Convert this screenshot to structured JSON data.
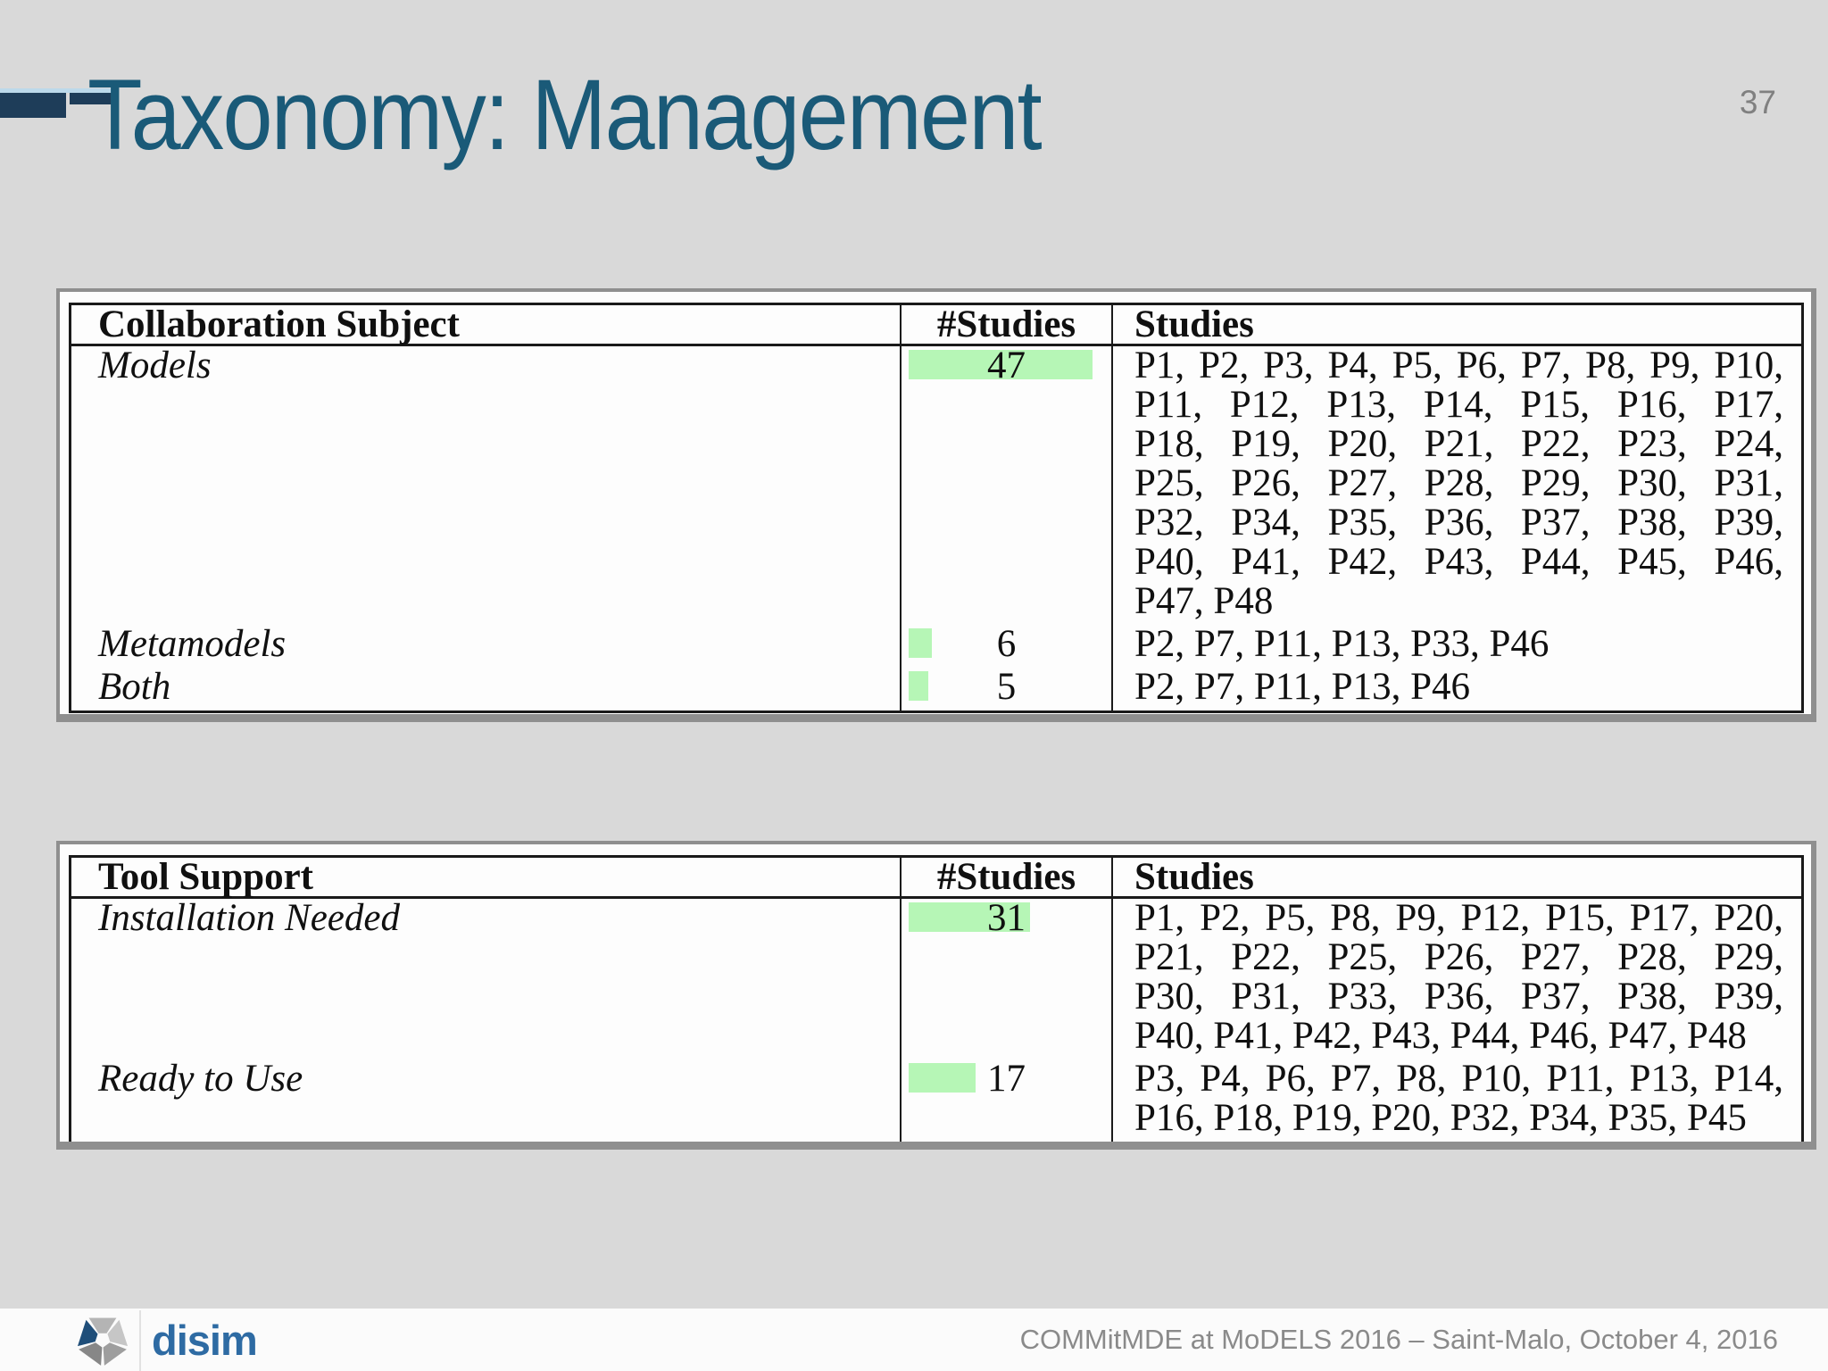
{
  "page": {
    "number": "37"
  },
  "title": {
    "text": "Taxonomy: Management"
  },
  "theme": {
    "background": "#d9d9d9",
    "title_color": "#1a5a78",
    "accent_navy": "#1e3d59",
    "accent_blue": "#bcd9ea",
    "highlight_green": "#b6f6b6",
    "panel_border": "#8f8f8f",
    "table_border": "#1a1a1a",
    "logo_blue": "#2e6ba3"
  },
  "tables": [
    {
      "headers": [
        "Collaboration Subject",
        "#Studies",
        "Studies"
      ],
      "max_studies": 47,
      "rows": [
        {
          "label": "Models",
          "count": 47,
          "studies_lines": [
            "P1, P2, P3, P4, P5, P6, P7, P8, P9, P10,",
            "P11, P12, P13, P14, P15, P16, P17,",
            "P18, P19, P20, P21, P22, P23, P24,",
            "P25, P26, P27, P28, P29, P30, P31,",
            "P32, P34, P35, P36, P37, P38, P39,",
            "P40, P41, P42, P43, P44, P45, P46,",
            "P47, P48"
          ]
        },
        {
          "label": "Metamodels",
          "count": 6,
          "studies_lines": [
            "P2, P7, P11, P13, P33, P46"
          ]
        },
        {
          "label": "Both",
          "count": 5,
          "studies_lines": [
            "P2, P7, P11, P13, P46"
          ]
        }
      ]
    },
    {
      "headers": [
        "Tool Support",
        "#Studies",
        "Studies"
      ],
      "max_studies": 47,
      "rows": [
        {
          "label": "Installation Needed",
          "count": 31,
          "studies_lines": [
            "P1, P2, P5, P8, P9, P12, P15, P17, P20,",
            "P21, P22, P25, P26, P27, P28, P29,",
            "P30, P31, P33, P36, P37, P38, P39,",
            "P40, P41, P42, P43, P44, P46, P47, P48"
          ]
        },
        {
          "label": "Ready to Use",
          "count": 17,
          "studies_lines": [
            "P3, P4, P6, P7, P8, P10, P11, P13, P14,",
            "P16, P18, P19, P20, P32, P34, P35, P45"
          ]
        }
      ]
    }
  ],
  "footer": {
    "logo_text": "disim",
    "conference_line": "COMMitMDE at MoDELS 2016 – Saint-Malo, October 4, 2016"
  }
}
